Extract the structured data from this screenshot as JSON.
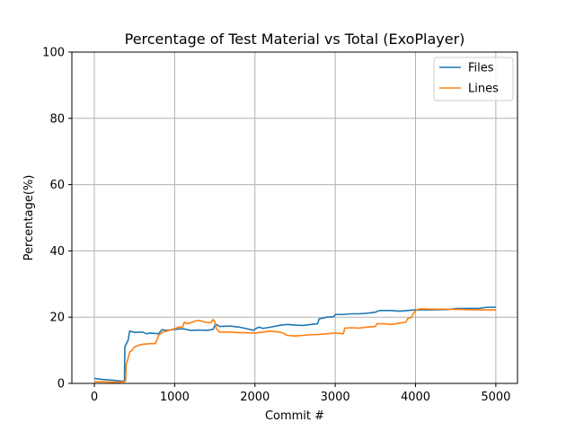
{
  "chart_data": {
    "type": "line",
    "title": "Percentage of Test Material vs Total (ExoPlayer)",
    "xlabel": "Commit #",
    "ylabel": "Percentage(%)",
    "xlim": [
      -280,
      5270
    ],
    "ylim": [
      0,
      100
    ],
    "xticks": [
      0,
      1000,
      2000,
      3000,
      4000,
      5000
    ],
    "yticks": [
      0,
      20,
      40,
      60,
      80,
      100
    ],
    "grid": true,
    "legend_position": "top-right",
    "series": [
      {
        "name": "Files",
        "color": "#1f77b4",
        "points": [
          [
            0,
            1.5
          ],
          [
            100,
            1.2
          ],
          [
            200,
            1.0
          ],
          [
            300,
            0.8
          ],
          [
            375,
            0.6
          ],
          [
            380,
            11.0
          ],
          [
            400,
            12.0
          ],
          [
            420,
            13.0
          ],
          [
            440,
            15.8
          ],
          [
            500,
            15.4
          ],
          [
            600,
            15.5
          ],
          [
            650,
            15.0
          ],
          [
            700,
            15.2
          ],
          [
            800,
            15.0
          ],
          [
            840,
            16.2
          ],
          [
            900,
            16.0
          ],
          [
            1000,
            16.3
          ],
          [
            1100,
            16.5
          ],
          [
            1200,
            16.0
          ],
          [
            1300,
            16.1
          ],
          [
            1400,
            16.0
          ],
          [
            1480,
            16.3
          ],
          [
            1500,
            17.5
          ],
          [
            1520,
            17.8
          ],
          [
            1560,
            17.2
          ],
          [
            1700,
            17.3
          ],
          [
            1800,
            17.0
          ],
          [
            1900,
            16.5
          ],
          [
            1980,
            16.0
          ],
          [
            2000,
            16.4
          ],
          [
            2050,
            17.0
          ],
          [
            2100,
            16.6
          ],
          [
            2200,
            17.0
          ],
          [
            2300,
            17.5
          ],
          [
            2400,
            17.8
          ],
          [
            2500,
            17.6
          ],
          [
            2600,
            17.5
          ],
          [
            2700,
            17.8
          ],
          [
            2780,
            18.0
          ],
          [
            2800,
            19.5
          ],
          [
            2900,
            20.0
          ],
          [
            2980,
            20.1
          ],
          [
            3000,
            20.8
          ],
          [
            3100,
            20.8
          ],
          [
            3200,
            21.0
          ],
          [
            3300,
            21.0
          ],
          [
            3400,
            21.2
          ],
          [
            3500,
            21.5
          ],
          [
            3550,
            22.0
          ],
          [
            3700,
            22.0
          ],
          [
            3800,
            21.8
          ],
          [
            3900,
            22.0
          ],
          [
            4000,
            22.2
          ],
          [
            4200,
            22.2
          ],
          [
            4400,
            22.3
          ],
          [
            4500,
            22.6
          ],
          [
            4800,
            22.7
          ],
          [
            4900,
            23.0
          ],
          [
            5000,
            23.0
          ]
        ]
      },
      {
        "name": "Lines",
        "color": "#ff7f0e",
        "points": [
          [
            0,
            0.5
          ],
          [
            100,
            0.5
          ],
          [
            200,
            0.4
          ],
          [
            300,
            0.4
          ],
          [
            370,
            0.5
          ],
          [
            390,
            0.8
          ],
          [
            395,
            5.5
          ],
          [
            410,
            6.8
          ],
          [
            420,
            7.5
          ],
          [
            440,
            9.5
          ],
          [
            470,
            10.0
          ],
          [
            500,
            11.0
          ],
          [
            550,
            11.5
          ],
          [
            600,
            11.8
          ],
          [
            700,
            12.0
          ],
          [
            760,
            12.0
          ],
          [
            800,
            14.5
          ],
          [
            850,
            15.5
          ],
          [
            900,
            15.8
          ],
          [
            1000,
            16.5
          ],
          [
            1050,
            17.0
          ],
          [
            1100,
            17.0
          ],
          [
            1120,
            18.5
          ],
          [
            1150,
            18.0
          ],
          [
            1200,
            18.3
          ],
          [
            1250,
            18.8
          ],
          [
            1300,
            19.0
          ],
          [
            1380,
            18.5
          ],
          [
            1450,
            18.3
          ],
          [
            1480,
            19.3
          ],
          [
            1500,
            18.5
          ],
          [
            1520,
            16.5
          ],
          [
            1560,
            15.5
          ],
          [
            1700,
            15.5
          ],
          [
            1800,
            15.3
          ],
          [
            1900,
            15.3
          ],
          [
            2000,
            15.2
          ],
          [
            2100,
            15.5
          ],
          [
            2200,
            15.8
          ],
          [
            2300,
            15.5
          ],
          [
            2350,
            15.2
          ],
          [
            2400,
            14.5
          ],
          [
            2500,
            14.3
          ],
          [
            2600,
            14.5
          ],
          [
            2700,
            14.7
          ],
          [
            2800,
            14.8
          ],
          [
            2900,
            15.0
          ],
          [
            3000,
            15.2
          ],
          [
            3100,
            15.0
          ],
          [
            3120,
            16.7
          ],
          [
            3200,
            16.8
          ],
          [
            3300,
            16.7
          ],
          [
            3400,
            17.0
          ],
          [
            3500,
            17.2
          ],
          [
            3520,
            18.0
          ],
          [
            3600,
            18.0
          ],
          [
            3700,
            17.8
          ],
          [
            3800,
            18.2
          ],
          [
            3880,
            18.5
          ],
          [
            3900,
            19.5
          ],
          [
            3950,
            20.0
          ],
          [
            3970,
            21.0
          ],
          [
            4000,
            22.0
          ],
          [
            4050,
            22.5
          ],
          [
            4200,
            22.4
          ],
          [
            4400,
            22.4
          ],
          [
            4600,
            22.3
          ],
          [
            4800,
            22.2
          ],
          [
            5000,
            22.2
          ]
        ]
      }
    ]
  }
}
